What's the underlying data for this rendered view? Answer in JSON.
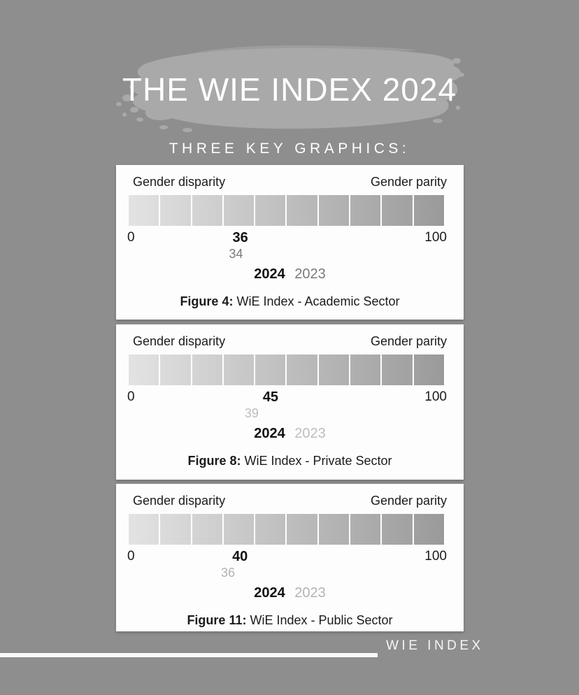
{
  "header": {
    "title": "THE WIE INDEX 2024",
    "subtitle": "THREE KEY GRAPHICS:"
  },
  "footer": {
    "brand": "WIE INDEX"
  },
  "colors": {
    "background": "#8E8E8E",
    "brush_stroke": "#A9A9A9",
    "card_background": "#FDFDFD",
    "bar_gradient_start": "#E3E3E3",
    "bar_gradient_end": "#9A9A9A",
    "card_text": "#1B1B1B",
    "title_text": "#FFFFFF",
    "value_2024": "#101010"
  },
  "chart_data": [
    {
      "type": "bar",
      "title": "WiE Index - Academic Sector",
      "figure_label": "Figure 4:",
      "left_label": "Gender disparity",
      "right_label": "Gender parity",
      "axis_min": 0,
      "axis_max": 100,
      "xlim": [
        0,
        100
      ],
      "segments": 10,
      "legend_position": "bottom-center",
      "series": [
        {
          "name": "2024",
          "value": 36,
          "pos_pct": 35.4,
          "color": "#101010",
          "bold": true
        },
        {
          "name": "2023",
          "value": 34,
          "pos_pct": 34.0,
          "color": "#7A7A7A",
          "bold": false
        }
      ]
    },
    {
      "type": "bar",
      "title": "WiE Index - Private Sector",
      "figure_label": "Figure 8:",
      "left_label": "Gender disparity",
      "right_label": "Gender parity",
      "axis_min": 0,
      "axis_max": 100,
      "xlim": [
        0,
        100
      ],
      "segments": 10,
      "legend_position": "bottom-center",
      "series": [
        {
          "name": "2024",
          "value": 45,
          "pos_pct": 45.0,
          "color": "#101010",
          "bold": true
        },
        {
          "name": "2023",
          "value": 39,
          "pos_pct": 39.0,
          "color": "#BDBDBD",
          "bold": false
        }
      ]
    },
    {
      "type": "bar",
      "title": "WiE Index - Public Sector",
      "figure_label": "Figure 11:",
      "left_label": "Gender disparity",
      "right_label": "Gender parity",
      "axis_min": 0,
      "axis_max": 100,
      "xlim": [
        0,
        100
      ],
      "segments": 10,
      "legend_position": "bottom-center",
      "series": [
        {
          "name": "2024",
          "value": 40,
          "pos_pct": 35.3,
          "color": "#101010",
          "bold": true
        },
        {
          "name": "2023",
          "value": 36,
          "pos_pct": 31.5,
          "color": "#B3B3B3",
          "bold": false
        }
      ]
    }
  ]
}
